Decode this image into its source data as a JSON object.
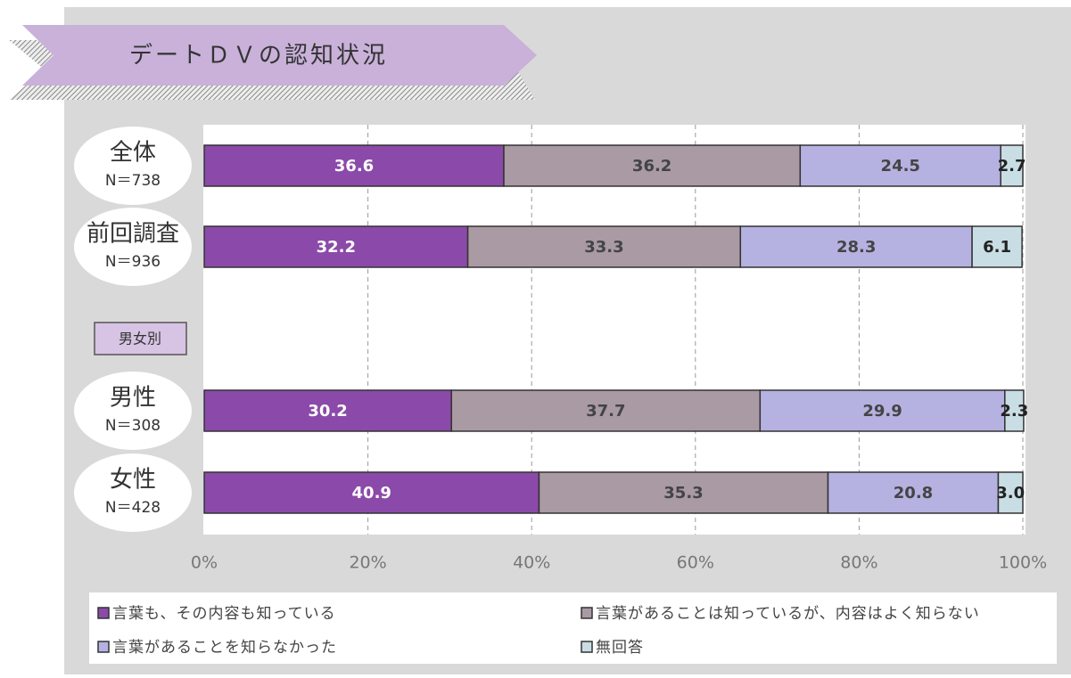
{
  "chart_data": {
    "type": "stacked-bar-horizontal",
    "title": "デートＤＶの認知状況",
    "categories": [
      "全体",
      "前回調査",
      "男女別",
      "男性",
      "女性"
    ],
    "sample_sizes": [
      "N＝738",
      "N＝936",
      null,
      "N＝308",
      "N＝428"
    ],
    "series": [
      {
        "name": "言葉も、その内容も知っている",
        "color": "#8b4aa9",
        "values": [
          36.6,
          32.2,
          null,
          30.2,
          40.9
        ]
      },
      {
        "name": "言葉があることは知っているが、内容はよく知らない",
        "color": "#a99aa4",
        "values": [
          36.2,
          33.3,
          null,
          37.7,
          35.3
        ]
      },
      {
        "name": "言葉があることを知らなかった",
        "color": "#b5b1e1",
        "values": [
          24.5,
          28.3,
          null,
          29.9,
          20.8
        ]
      },
      {
        "name": "無回答",
        "color": "#c9dde4",
        "values": [
          2.7,
          6.1,
          null,
          2.3,
          3.0
        ],
        "value_labels": [
          "2.7",
          "6.1",
          null,
          "2.3",
          "3.0"
        ]
      }
    ],
    "xlim": [
      0,
      100
    ],
    "xticks": [
      {
        "value": 0,
        "label": "0%"
      },
      {
        "value": 20,
        "label": "20%"
      },
      {
        "value": 40,
        "label": "40%"
      },
      {
        "value": 60,
        "label": "60%"
      },
      {
        "value": 80,
        "label": "80%"
      },
      {
        "value": 100,
        "label": "100%"
      }
    ],
    "grid": true
  }
}
